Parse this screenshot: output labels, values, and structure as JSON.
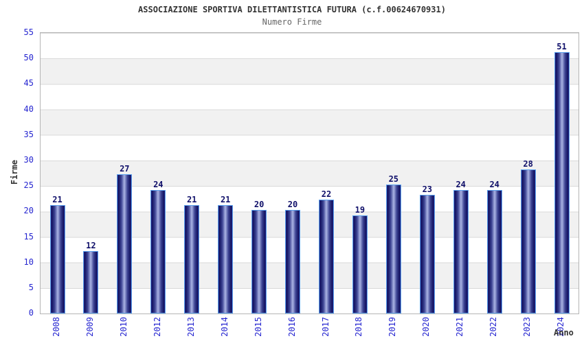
{
  "chart_data": {
    "type": "bar",
    "title": "ASSOCIAZIONE SPORTIVA DILETTANTISTICA FUTURA (c.f.00624670931)",
    "subtitle": "Numero Firme",
    "xlabel": "Anno",
    "ylabel": "Firme",
    "categories": [
      "2008",
      "2009",
      "2010",
      "2012",
      "2013",
      "2014",
      "2015",
      "2016",
      "2017",
      "2018",
      "2019",
      "2020",
      "2021",
      "2022",
      "2023",
      "2024"
    ],
    "values": [
      21,
      12,
      27,
      24,
      21,
      21,
      20,
      20,
      22,
      19,
      25,
      23,
      24,
      24,
      28,
      51
    ],
    "ylim": [
      0,
      55
    ],
    "ytick_step": 5,
    "yticks": [
      0,
      5,
      10,
      15,
      20,
      25,
      30,
      35,
      40,
      45,
      50,
      55
    ],
    "grid": true,
    "band_fill": true,
    "legend": "none",
    "colors": {
      "bar_edge": "#23237e",
      "bar_dark": "#141462",
      "bar_mid": "#3d4494",
      "bar_light": "#aab4e4",
      "bar_outline": "#59a0ee",
      "tick_label": "#2525d0",
      "value_label": "#10106a",
      "title": "#333333",
      "subtitle": "#666666",
      "band": "#f1f1f1",
      "gridline": "#d9d9d9",
      "border": "#b5b5b5",
      "axis_title": "#333333"
    }
  }
}
